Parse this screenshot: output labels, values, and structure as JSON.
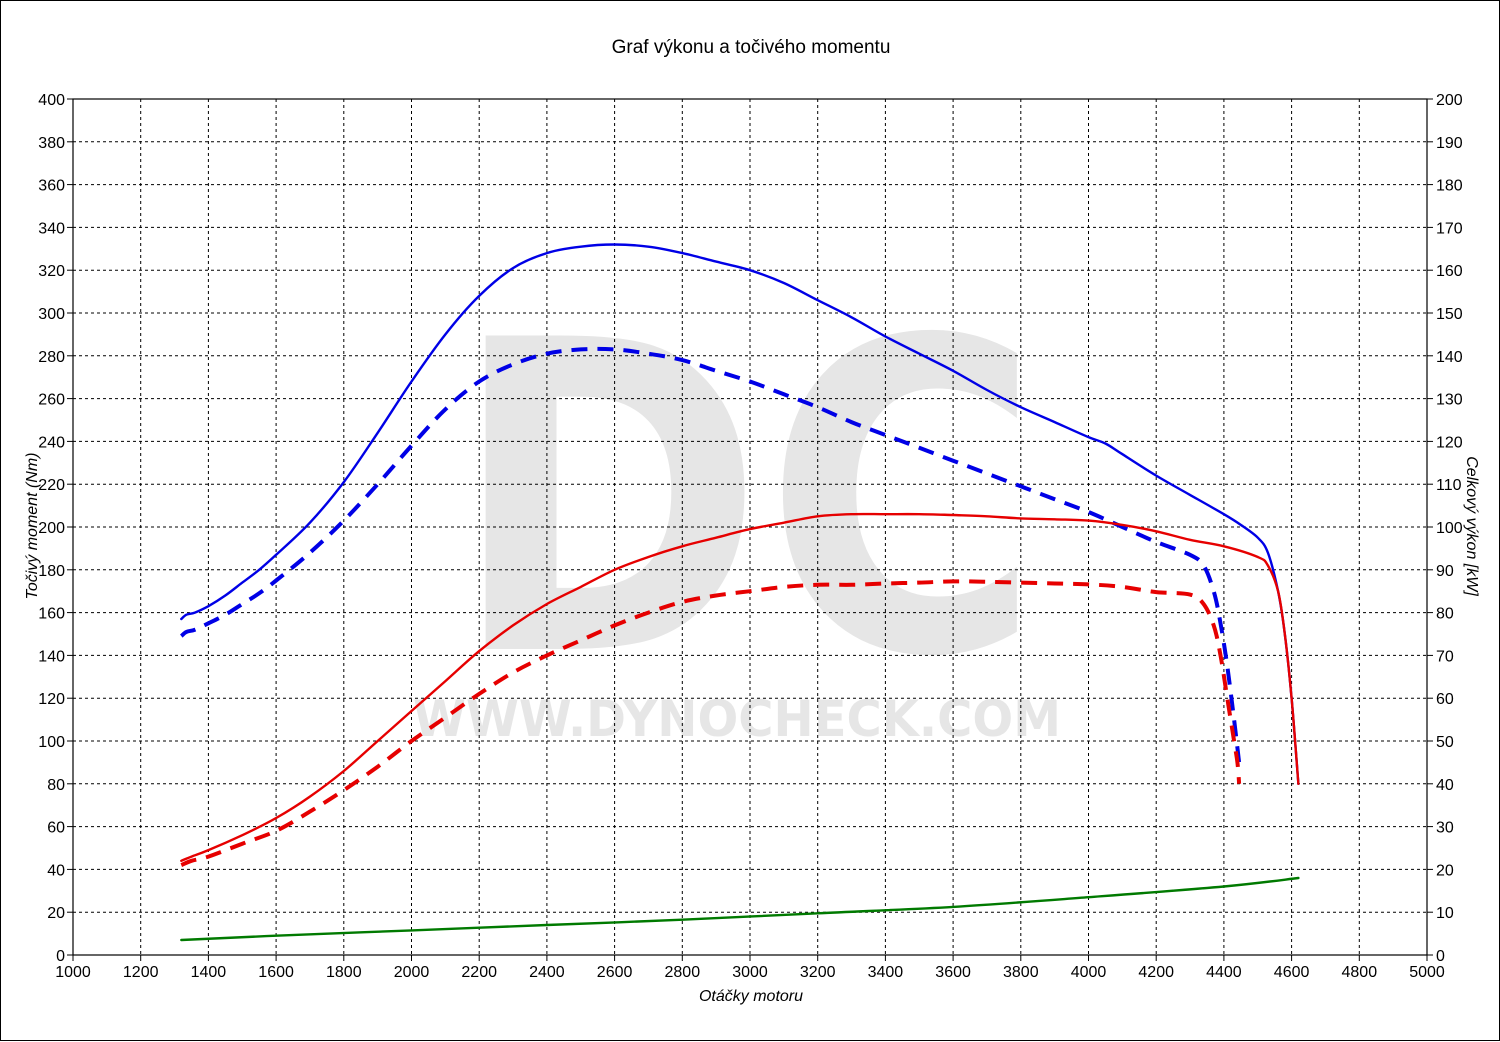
{
  "chart_data": {
    "type": "line",
    "title": "Graf výkonu a točivého momentu",
    "xlabel": "Otáčky motoru",
    "ylabel_left": "Točivý moment (Nm)",
    "ylabel_right": "Celkový výkon [kW]",
    "xlim": [
      1000,
      5000
    ],
    "ylim_left": [
      0,
      400
    ],
    "ylim_right": [
      0,
      200
    ],
    "x_ticks": [
      1000,
      1200,
      1400,
      1600,
      1800,
      2000,
      2200,
      2400,
      2600,
      2800,
      3000,
      3200,
      3400,
      3600,
      3800,
      4000,
      4200,
      4400,
      4600,
      4800,
      5000
    ],
    "y_left_ticks": [
      0,
      20,
      40,
      60,
      80,
      100,
      120,
      140,
      160,
      180,
      200,
      220,
      240,
      260,
      280,
      300,
      320,
      340,
      360,
      380,
      400
    ],
    "y_right_ticks": [
      0,
      10,
      20,
      30,
      40,
      50,
      60,
      70,
      80,
      90,
      100,
      110,
      120,
      130,
      140,
      150,
      160,
      170,
      180,
      190,
      200
    ],
    "grid": true,
    "watermark": {
      "logo": "DC",
      "url": "WWW.DYNOCHECK.COM"
    },
    "series": [
      {
        "axis": "left",
        "color": "#0000e6",
        "dash": "solid",
        "points": [
          [
            1320,
            157
          ],
          [
            1335,
            159
          ],
          [
            1360,
            160
          ],
          [
            1400,
            163
          ],
          [
            1450,
            168
          ],
          [
            1500,
            174
          ],
          [
            1550,
            180
          ],
          [
            1600,
            187
          ],
          [
            1700,
            202
          ],
          [
            1800,
            221
          ],
          [
            1900,
            244
          ],
          [
            2000,
            268
          ],
          [
            2100,
            290
          ],
          [
            2200,
            308
          ],
          [
            2300,
            321
          ],
          [
            2400,
            328
          ],
          [
            2500,
            331
          ],
          [
            2600,
            332
          ],
          [
            2700,
            331
          ],
          [
            2800,
            328
          ],
          [
            2900,
            324
          ],
          [
            3000,
            320
          ],
          [
            3100,
            314
          ],
          [
            3200,
            306
          ],
          [
            3300,
            298
          ],
          [
            3400,
            289
          ],
          [
            3500,
            281
          ],
          [
            3600,
            273
          ],
          [
            3700,
            264
          ],
          [
            3800,
            256
          ],
          [
            3900,
            249
          ],
          [
            4000,
            242
          ],
          [
            4050,
            239
          ],
          [
            4100,
            234
          ],
          [
            4200,
            224
          ],
          [
            4300,
            215
          ],
          [
            4400,
            206
          ],
          [
            4450,
            201
          ],
          [
            4500,
            195
          ],
          [
            4530,
            188
          ],
          [
            4560,
            170
          ],
          [
            4580,
            150
          ],
          [
            4600,
            120
          ],
          [
            4620,
            80
          ]
        ]
      },
      {
        "axis": "left",
        "color": "#0000e6",
        "dash": "dashed",
        "points": [
          [
            1320,
            149
          ],
          [
            1335,
            151
          ],
          [
            1360,
            152
          ],
          [
            1400,
            155
          ],
          [
            1450,
            159
          ],
          [
            1500,
            164
          ],
          [
            1550,
            169
          ],
          [
            1600,
            175
          ],
          [
            1700,
            188
          ],
          [
            1800,
            203
          ],
          [
            1900,
            220
          ],
          [
            2000,
            238
          ],
          [
            2100,
            255
          ],
          [
            2200,
            268
          ],
          [
            2300,
            276
          ],
          [
            2400,
            281
          ],
          [
            2500,
            283
          ],
          [
            2600,
            283
          ],
          [
            2700,
            281
          ],
          [
            2800,
            278
          ],
          [
            2900,
            273
          ],
          [
            3000,
            268
          ],
          [
            3100,
            262
          ],
          [
            3200,
            256
          ],
          [
            3300,
            249
          ],
          [
            3400,
            243
          ],
          [
            3500,
            237
          ],
          [
            3600,
            231
          ],
          [
            3700,
            225
          ],
          [
            3800,
            219
          ],
          [
            3900,
            213
          ],
          [
            4000,
            207
          ],
          [
            4100,
            200
          ],
          [
            4200,
            193
          ],
          [
            4300,
            187
          ],
          [
            4340,
            182
          ],
          [
            4370,
            170
          ],
          [
            4390,
            155
          ],
          [
            4410,
            135
          ],
          [
            4430,
            110
          ],
          [
            4445,
            90
          ]
        ]
      },
      {
        "axis": "right",
        "color": "#e60000",
        "dash": "solid",
        "points": [
          [
            1320,
            22
          ],
          [
            1350,
            23
          ],
          [
            1400,
            24.5
          ],
          [
            1500,
            28
          ],
          [
            1600,
            32
          ],
          [
            1700,
            37
          ],
          [
            1800,
            43
          ],
          [
            1900,
            50
          ],
          [
            2000,
            57
          ],
          [
            2100,
            64
          ],
          [
            2200,
            71
          ],
          [
            2300,
            77
          ],
          [
            2400,
            82
          ],
          [
            2500,
            86
          ],
          [
            2600,
            90
          ],
          [
            2700,
            93
          ],
          [
            2800,
            95.5
          ],
          [
            2900,
            97.5
          ],
          [
            3000,
            99.5
          ],
          [
            3100,
            101
          ],
          [
            3200,
            102.5
          ],
          [
            3300,
            103
          ],
          [
            3400,
            103
          ],
          [
            3500,
            103
          ],
          [
            3600,
            102.8
          ],
          [
            3700,
            102.5
          ],
          [
            3800,
            102
          ],
          [
            3900,
            101.8
          ],
          [
            4000,
            101.5
          ],
          [
            4100,
            100.5
          ],
          [
            4200,
            99
          ],
          [
            4300,
            97
          ],
          [
            4400,
            95.5
          ],
          [
            4500,
            93
          ],
          [
            4530,
            91
          ],
          [
            4560,
            85
          ],
          [
            4580,
            75
          ],
          [
            4600,
            60
          ],
          [
            4620,
            40
          ]
        ]
      },
      {
        "axis": "right",
        "color": "#e60000",
        "dash": "dashed",
        "points": [
          [
            1320,
            21
          ],
          [
            1350,
            22
          ],
          [
            1400,
            23
          ],
          [
            1500,
            26
          ],
          [
            1600,
            29
          ],
          [
            1700,
            33.5
          ],
          [
            1800,
            38.5
          ],
          [
            1900,
            44
          ],
          [
            2000,
            50
          ],
          [
            2100,
            55.5
          ],
          [
            2200,
            61
          ],
          [
            2300,
            66
          ],
          [
            2400,
            70
          ],
          [
            2500,
            73.5
          ],
          [
            2600,
            77
          ],
          [
            2700,
            80
          ],
          [
            2800,
            82.5
          ],
          [
            2900,
            84
          ],
          [
            3000,
            85
          ],
          [
            3100,
            86
          ],
          [
            3200,
            86.5
          ],
          [
            3300,
            86.5
          ],
          [
            3400,
            86.8
          ],
          [
            3500,
            87
          ],
          [
            3600,
            87.3
          ],
          [
            3700,
            87.2
          ],
          [
            3800,
            87
          ],
          [
            3900,
            86.8
          ],
          [
            4000,
            86.6
          ],
          [
            4100,
            86
          ],
          [
            4200,
            84.8
          ],
          [
            4300,
            84.2
          ],
          [
            4340,
            82
          ],
          [
            4370,
            77
          ],
          [
            4390,
            70
          ],
          [
            4410,
            60
          ],
          [
            4430,
            50
          ],
          [
            4440,
            45
          ],
          [
            4445,
            40
          ]
        ]
      },
      {
        "axis": "left",
        "color": "#007a00",
        "dash": "solid",
        "points": [
          [
            1320,
            7
          ],
          [
            1600,
            9
          ],
          [
            2000,
            11.5
          ],
          [
            2400,
            14
          ],
          [
            2800,
            16.5
          ],
          [
            3200,
            19.5
          ],
          [
            3600,
            22.5
          ],
          [
            4000,
            27
          ],
          [
            4400,
            32
          ],
          [
            4620,
            36
          ]
        ]
      }
    ]
  }
}
